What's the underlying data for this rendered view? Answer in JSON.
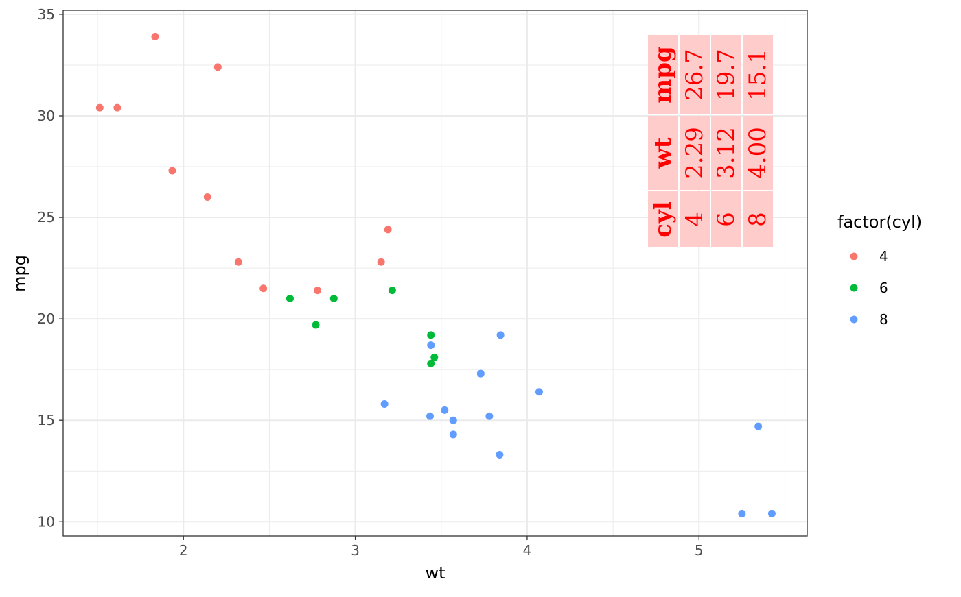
{
  "chart_data": {
    "type": "scatter",
    "title": "",
    "xlabel": "wt",
    "ylabel": "mpg",
    "xlim": [
      1.3,
      5.63
    ],
    "ylim": [
      9.3,
      35.2
    ],
    "x_ticks": [
      2,
      3,
      4,
      5
    ],
    "y_ticks": [
      10,
      15,
      20,
      25,
      30,
      35
    ],
    "x_tick_labels": [
      "2",
      "3",
      "4",
      "5"
    ],
    "y_tick_labels": [
      "10",
      "15",
      "20",
      "25",
      "30",
      "35"
    ],
    "grid": true,
    "legend": {
      "title": "factor(cyl)",
      "position": "right",
      "entries": [
        {
          "label": "4",
          "color": "#F8766D"
        },
        {
          "label": "6",
          "color": "#00BA38"
        },
        {
          "label": "8",
          "color": "#619CFF"
        }
      ]
    },
    "series": [
      {
        "name": "4",
        "color": "#F8766D",
        "points": [
          [
            2.32,
            22.8
          ],
          [
            3.19,
            24.4
          ],
          [
            3.15,
            22.8
          ],
          [
            2.2,
            32.4
          ],
          [
            1.615,
            30.4
          ],
          [
            1.835,
            33.9
          ],
          [
            2.465,
            21.5
          ],
          [
            1.935,
            27.3
          ],
          [
            2.14,
            26.0
          ],
          [
            1.513,
            30.4
          ],
          [
            2.78,
            21.4
          ]
        ]
      },
      {
        "name": "6",
        "color": "#00BA38",
        "points": [
          [
            2.62,
            21.0
          ],
          [
            2.875,
            21.0
          ],
          [
            3.215,
            21.4
          ],
          [
            3.46,
            18.1
          ],
          [
            3.44,
            19.2
          ],
          [
            3.44,
            17.8
          ],
          [
            2.77,
            19.7
          ]
        ]
      },
      {
        "name": "8",
        "color": "#619CFF",
        "points": [
          [
            3.44,
            18.7
          ],
          [
            3.57,
            14.3
          ],
          [
            4.07,
            16.4
          ],
          [
            3.73,
            17.3
          ],
          [
            3.78,
            15.2
          ],
          [
            5.25,
            10.4
          ],
          [
            5.424,
            10.4
          ],
          [
            5.345,
            14.7
          ],
          [
            3.52,
            15.5
          ],
          [
            3.435,
            15.2
          ],
          [
            3.84,
            13.3
          ],
          [
            3.845,
            19.2
          ],
          [
            3.17,
            15.8
          ],
          [
            3.57,
            15.0
          ]
        ]
      }
    ],
    "annotation_table": {
      "rows": [
        {
          "header": "mpg",
          "values": [
            "26.7",
            "19.7",
            "15.1"
          ]
        },
        {
          "header": "wt",
          "values": [
            "2.29",
            "3.12",
            "4.00"
          ]
        },
        {
          "header": "cyl",
          "values": [
            "4",
            "6",
            "8"
          ]
        }
      ],
      "fill_color": "#FFCCCC",
      "text_color": "#FF0000"
    }
  }
}
